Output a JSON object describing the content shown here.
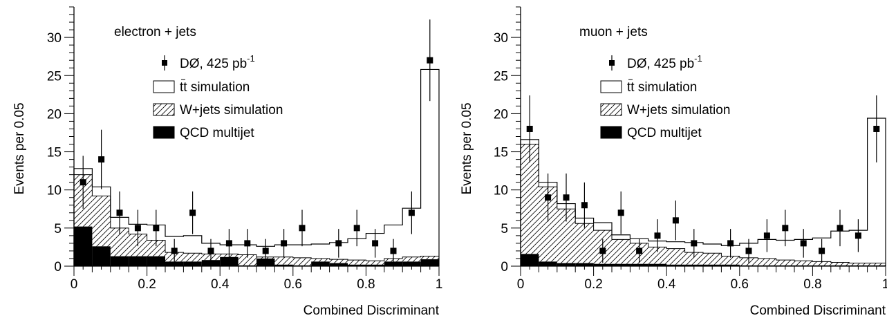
{
  "chart_data": [
    {
      "type": "bar",
      "panel_label": "electron + jets",
      "xlabel": "Combined Discriminant",
      "ylabel": "Events per 0.05",
      "xlim": [
        0,
        1
      ],
      "ylim": [
        0,
        34
      ],
      "xticks": [
        0,
        0.2,
        0.4,
        0.6,
        0.8,
        1
      ],
      "xtick_labels": [
        "0",
        "0.2",
        "0.4",
        "0.6",
        "0.8",
        "1"
      ],
      "yticks": [
        0,
        5,
        10,
        15,
        20,
        25,
        30
      ],
      "ytick_labels": [
        "0",
        "5",
        "10",
        "15",
        "20",
        "25",
        "30"
      ],
      "legend_position": "top-right",
      "legend": [
        {
          "key": "data",
          "label_main": "DØ, 425 pb",
          "label_sup": "-1"
        },
        {
          "key": "ttbar",
          "label_main": "tt simulation"
        },
        {
          "key": "wjets",
          "label_main": "W+jets simulation"
        },
        {
          "key": "qcd",
          "label_main": "QCD multijet"
        }
      ],
      "bin_edges": [
        0,
        0.05,
        0.1,
        0.15,
        0.2,
        0.25,
        0.3,
        0.35,
        0.4,
        0.45,
        0.5,
        0.55,
        0.6,
        0.65,
        0.7,
        0.75,
        0.8,
        0.85,
        0.9,
        0.95,
        1.0
      ],
      "stack": {
        "qcd_top": [
          5.2,
          2.6,
          1.3,
          1.3,
          1.3,
          0.6,
          0.6,
          0.8,
          1.2,
          0.1,
          1.0,
          0.2,
          0.1,
          0.6,
          0.4,
          0.2,
          0.2,
          0.6,
          0.6,
          0.9
        ],
        "wjets_top": [
          12.0,
          9.2,
          5.0,
          4.2,
          3.4,
          1.8,
          1.7,
          1.6,
          1.6,
          1.5,
          1.2,
          1.2,
          1.1,
          1.0,
          0.9,
          0.8,
          0.7,
          1.0,
          1.2,
          1.3
        ],
        "ttbar_top": [
          12.8,
          10.4,
          6.4,
          5.5,
          5.4,
          3.9,
          4.0,
          3.0,
          2.8,
          2.8,
          2.6,
          2.8,
          2.8,
          2.9,
          3.1,
          3.6,
          4.3,
          5.4,
          7.6,
          25.8
        ]
      },
      "data": {
        "x": [
          0.025,
          0.075,
          0.125,
          0.175,
          0.225,
          0.275,
          0.325,
          0.375,
          0.425,
          0.475,
          0.525,
          0.575,
          0.625,
          0.725,
          0.775,
          0.825,
          0.875,
          0.925,
          0.975
        ],
        "y": [
          11,
          14,
          7,
          5,
          5,
          2,
          7,
          2,
          3,
          3,
          2,
          3,
          5,
          3,
          5,
          3,
          2,
          7,
          27
        ]
      }
    },
    {
      "type": "bar",
      "panel_label": "muon + jets",
      "xlabel": "Combined Discriminant",
      "ylabel": "Events per 0.05",
      "xlim": [
        0,
        1
      ],
      "ylim": [
        0,
        34
      ],
      "xticks": [
        0,
        0.2,
        0.4,
        0.6,
        0.8,
        1
      ],
      "xtick_labels": [
        "0",
        "0.2",
        "0.4",
        "0.6",
        "0.8",
        "1"
      ],
      "yticks": [
        0,
        5,
        10,
        15,
        20,
        25,
        30
      ],
      "ytick_labels": [
        "0",
        "5",
        "10",
        "15",
        "20",
        "25",
        "30"
      ],
      "legend_position": "top-right",
      "legend": [
        {
          "key": "data",
          "label_main": "DØ, 425 pb",
          "label_sup": "-1"
        },
        {
          "key": "ttbar",
          "label_main": "tt simulation"
        },
        {
          "key": "wjets",
          "label_main": "W+jets simulation"
        },
        {
          "key": "qcd",
          "label_main": "QCD multijet"
        }
      ],
      "bin_edges": [
        0,
        0.05,
        0.1,
        0.15,
        0.2,
        0.25,
        0.3,
        0.35,
        0.4,
        0.45,
        0.5,
        0.55,
        0.6,
        0.65,
        0.7,
        0.75,
        0.8,
        0.85,
        0.9,
        0.95,
        1.0
      ],
      "stack": {
        "qcd_top": [
          1.6,
          0.6,
          0.4,
          0.4,
          0.3,
          0.3,
          0.3,
          0.3,
          0.2,
          0.2,
          0.2,
          0.2,
          0.1,
          0.1,
          0.1,
          0.1,
          0.1,
          0.1,
          0.1,
          0.1
        ],
        "wjets_top": [
          16.0,
          10.4,
          7.5,
          5.6,
          4.7,
          3.5,
          3.0,
          2.5,
          2.3,
          1.8,
          1.7,
          1.3,
          1.1,
          1.0,
          0.8,
          0.7,
          0.6,
          0.5,
          0.4,
          0.4
        ],
        "ttbar_top": [
          16.6,
          11.0,
          8.2,
          6.3,
          5.7,
          4.1,
          3.6,
          3.3,
          3.2,
          3.1,
          2.9,
          2.7,
          3.0,
          3.5,
          3.4,
          3.5,
          3.7,
          4.6,
          4.7,
          19.4
        ]
      },
      "data": {
        "x": [
          0.025,
          0.075,
          0.125,
          0.175,
          0.225,
          0.275,
          0.325,
          0.375,
          0.425,
          0.475,
          0.575,
          0.625,
          0.675,
          0.725,
          0.775,
          0.825,
          0.875,
          0.925,
          0.975
        ],
        "y": [
          18,
          9,
          9,
          8,
          2,
          7,
          2,
          4,
          6,
          3,
          3,
          2,
          4,
          5,
          3,
          2,
          5,
          4,
          18
        ]
      }
    }
  ]
}
